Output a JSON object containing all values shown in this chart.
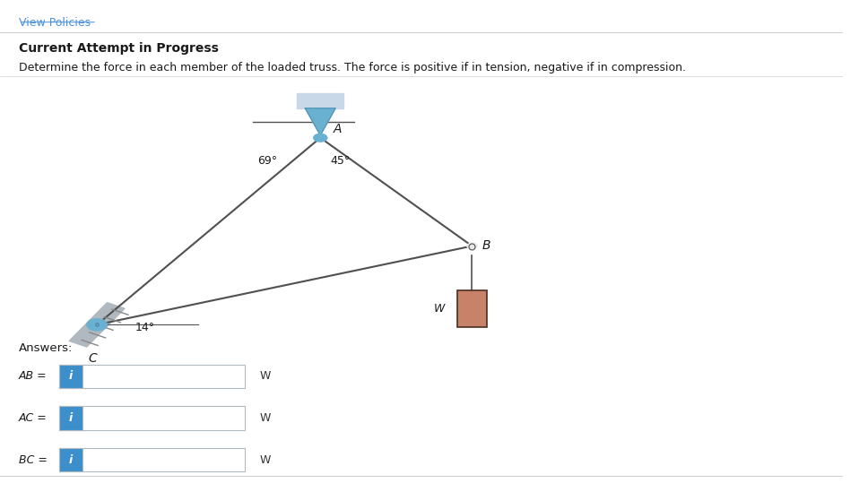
{
  "bg_color": "#ffffff",
  "page_bg": "#f0f0f0",
  "header_link": "View Policies",
  "header_link_color": "#4a90d9",
  "title_bold": "Current Attempt in Progress",
  "problem_text": "Determine the force in each member of the loaded truss. The force is positive if in tension, negative if in compression.",
  "answers_label": "Answers:",
  "answer_rows": [
    {
      "label": "AB =",
      "unit": "W"
    },
    {
      "label": "AC =",
      "unit": "W"
    },
    {
      "label": "BC =",
      "unit": "W"
    }
  ],
  "truss": {
    "A": [
      0.38,
      0.72
    ],
    "B": [
      0.56,
      0.5
    ],
    "C": [
      0.115,
      0.34
    ],
    "angle_A_left": "69°",
    "angle_A_right": "45°",
    "angle_C": "14°",
    "support_color_A": "#c8d8e8",
    "support_color_C": "#a0b8c8",
    "weight_color": "#c8826a",
    "weight_border": "#4a3020",
    "pin_color_A": "#6ab0d0",
    "pin_color_C": "#6ab0d0",
    "line_color": "#505050",
    "node_color": "#ffffff",
    "node_edge": "#505050"
  },
  "input_box_color": "#ffffff",
  "input_border_color": "#b0b8c0",
  "info_button_color": "#3d8fcc",
  "info_text_color": "#ffffff",
  "label_color": "#333333",
  "unit_color": "#333333",
  "separator_color": "#d0d0d0"
}
